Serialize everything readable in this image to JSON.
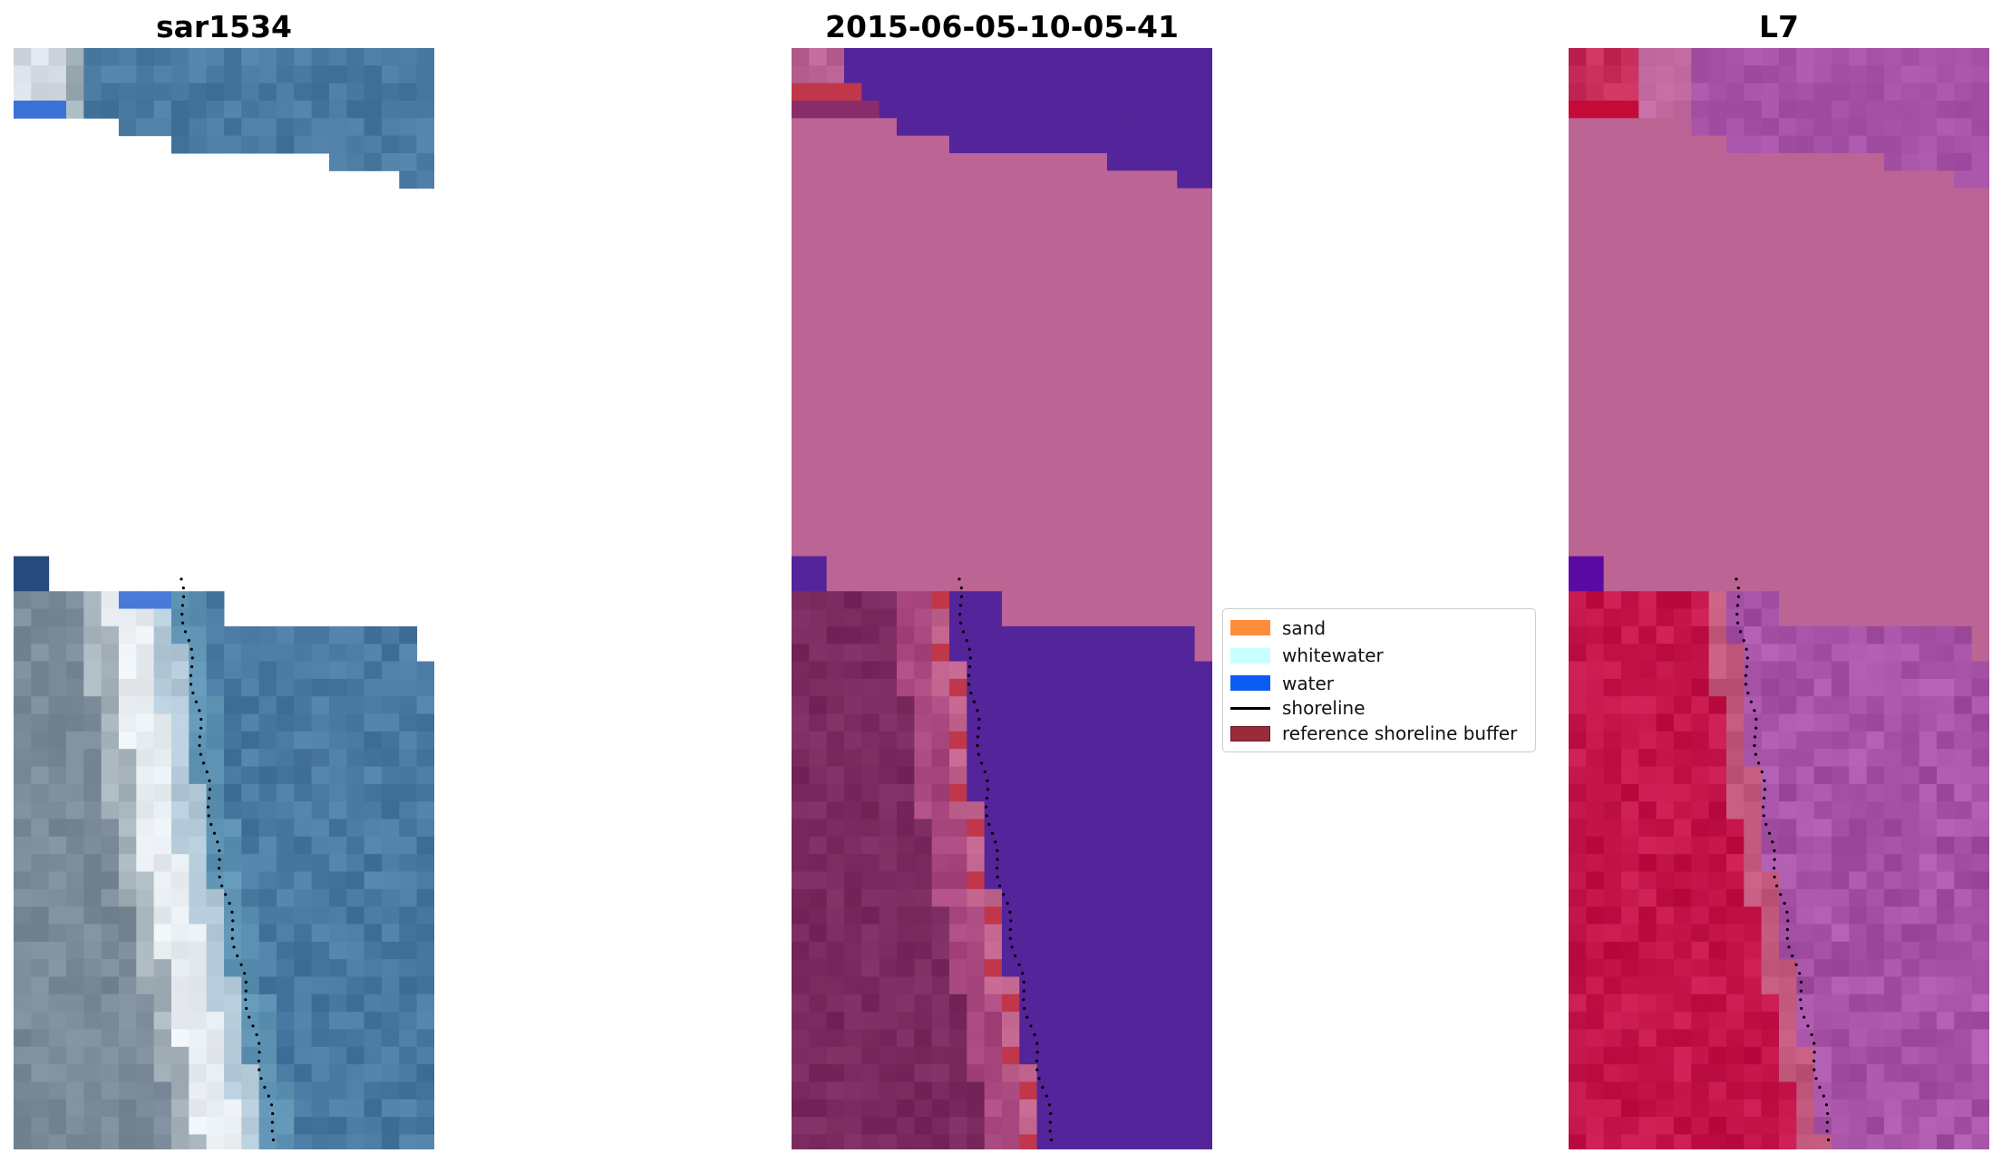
{
  "panels": [
    {
      "id": "rgb",
      "title": "sar1534"
    },
    {
      "id": "class",
      "title": "2015-06-05-10-05-41"
    },
    {
      "id": "index",
      "title": "L7"
    }
  ],
  "legend": {
    "items": [
      {
        "label": "sand",
        "kind": "patch",
        "color": "#ff8c3a"
      },
      {
        "label": "whitewater",
        "kind": "patch",
        "color": "#c8ffff"
      },
      {
        "label": "water",
        "kind": "patch",
        "color": "#0a5cf2"
      },
      {
        "label": "shoreline",
        "kind": "line",
        "color": "#000000"
      },
      {
        "label": "reference shoreline buffer",
        "kind": "patch",
        "color": "#9a2c3a"
      }
    ]
  },
  "colors": {
    "background": "#ffffff",
    "rgb_water": "#4a7aa2",
    "rgb_beach": "#e9eef2",
    "class_water": "#54249a",
    "class_pink": "#bc6494",
    "class_sand_dark": "#7a2a5e",
    "class_buffer": "#c0364a",
    "index_pink": "#bc6494",
    "index_red": "#c3154a",
    "index_purple": "#a652a6"
  }
}
